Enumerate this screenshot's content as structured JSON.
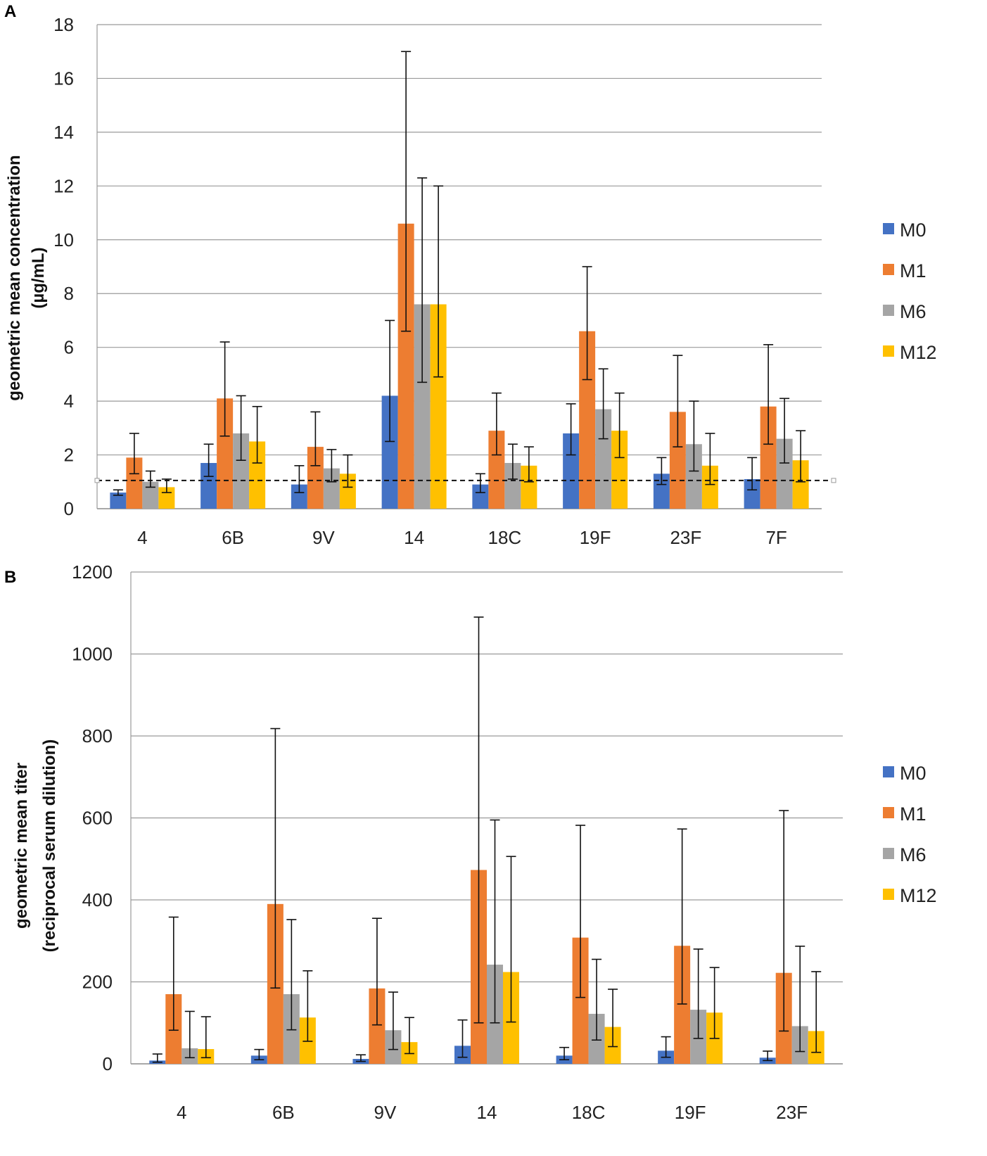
{
  "chart_data": [
    {
      "panel": "A",
      "type": "bar",
      "categories": [
        "4",
        "6B",
        "9V",
        "14",
        "18C",
        "19F",
        "23F",
        "7F"
      ],
      "ylabel_line1": "geometric mean concentration",
      "ylabel_line2": "(µg/mL)",
      "ylim": [
        0,
        18
      ],
      "yticks": [
        "0",
        "2",
        "4",
        "6",
        "8",
        "10",
        "12",
        "14",
        "16",
        "18"
      ],
      "ytick_values": [
        0,
        2,
        4,
        6,
        8,
        10,
        12,
        14,
        16,
        18
      ],
      "grid": true,
      "legend_position": "right",
      "reference_line": 1.05,
      "series": [
        {
          "name": "M0",
          "color": "#4472C4",
          "values": [
            0.6,
            1.7,
            0.9,
            4.2,
            0.9,
            2.8,
            1.3,
            1.1
          ],
          "err_low": [
            0.5,
            1.2,
            0.6,
            2.5,
            0.6,
            2.0,
            0.9,
            0.7
          ],
          "err_high": [
            0.7,
            2.4,
            1.6,
            7.0,
            1.3,
            3.9,
            1.9,
            1.9
          ]
        },
        {
          "name": "M1",
          "color": "#ED7D31",
          "values": [
            1.9,
            4.1,
            2.3,
            10.6,
            2.9,
            6.6,
            3.6,
            3.8
          ],
          "err_low": [
            1.3,
            2.7,
            1.6,
            6.6,
            2.0,
            4.8,
            2.3,
            2.4
          ],
          "err_high": [
            2.8,
            6.2,
            3.6,
            17.0,
            4.3,
            9.0,
            5.7,
            6.1
          ]
        },
        {
          "name": "M6",
          "color": "#A5A5A5",
          "values": [
            1.0,
            2.8,
            1.5,
            7.6,
            1.7,
            3.7,
            2.4,
            2.6
          ],
          "err_low": [
            0.8,
            1.8,
            1.0,
            4.7,
            1.1,
            2.6,
            1.4,
            1.7
          ],
          "err_high": [
            1.4,
            4.2,
            2.2,
            12.3,
            2.4,
            5.2,
            4.0,
            4.1
          ]
        },
        {
          "name": "M12",
          "color": "#FFC000",
          "values": [
            0.8,
            2.5,
            1.3,
            7.6,
            1.6,
            2.9,
            1.6,
            1.8
          ],
          "err_low": [
            0.6,
            1.7,
            0.8,
            4.9,
            1.0,
            1.9,
            0.9,
            1.0
          ],
          "err_high": [
            1.1,
            3.8,
            2.0,
            12.0,
            2.3,
            4.3,
            2.8,
            2.9
          ]
        }
      ]
    },
    {
      "panel": "B",
      "type": "bar",
      "categories": [
        "4",
        "6B",
        "9V",
        "14",
        "18C",
        "19F",
        "23F"
      ],
      "ylabel_line1": "geometric mean titer",
      "ylabel_line2": "(reciprocal serum dilution)",
      "ylim": [
        0,
        1200
      ],
      "yticks": [
        "0",
        "200",
        "400",
        "600",
        "800",
        "1000",
        "1200"
      ],
      "ytick_values": [
        0,
        200,
        400,
        600,
        800,
        1000,
        1200
      ],
      "grid": true,
      "legend_position": "right",
      "series": [
        {
          "name": "M0",
          "color": "#4472C4",
          "values": [
            8,
            20,
            12,
            44,
            20,
            32,
            15
          ],
          "err_low": [
            4,
            10,
            6,
            16,
            10,
            16,
            8
          ],
          "err_high": [
            24,
            35,
            22,
            107,
            40,
            66,
            31
          ]
        },
        {
          "name": "M1",
          "color": "#ED7D31",
          "values": [
            170,
            390,
            184,
            473,
            308,
            288,
            222
          ],
          "err_low": [
            82,
            185,
            95,
            100,
            162,
            146,
            80
          ],
          "err_high": [
            358,
            818,
            355,
            1090,
            582,
            573,
            618
          ]
        },
        {
          "name": "M6",
          "color": "#A5A5A5",
          "values": [
            38,
            170,
            82,
            242,
            122,
            132,
            92
          ],
          "err_low": [
            15,
            83,
            35,
            100,
            58,
            62,
            30
          ],
          "err_high": [
            128,
            352,
            175,
            595,
            255,
            280,
            287
          ]
        },
        {
          "name": "M12",
          "color": "#FFC000",
          "values": [
            36,
            113,
            53,
            224,
            90,
            125,
            80
          ],
          "err_low": [
            15,
            55,
            25,
            102,
            42,
            62,
            28
          ],
          "err_high": [
            115,
            227,
            113,
            506,
            182,
            235,
            225
          ]
        }
      ]
    }
  ]
}
